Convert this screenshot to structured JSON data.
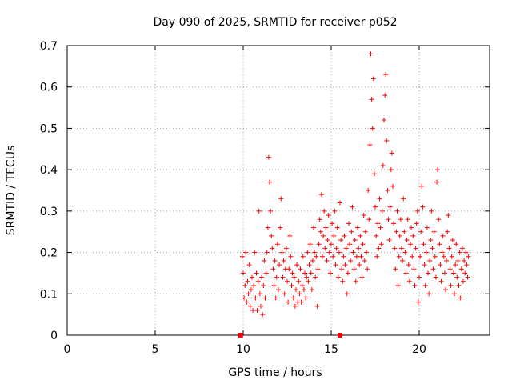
{
  "chart_data": {
    "type": "scatter",
    "title": "Day 090 of 2025, SRMTID for receiver p052",
    "xlabel": "GPS time / hours",
    "ylabel": "SRMTID / TECUs",
    "xlim": [
      0,
      24
    ],
    "ylim": [
      0,
      0.7
    ],
    "x_ticks": [
      "0",
      "5",
      "10",
      "15",
      "20"
    ],
    "y_ticks": [
      "0",
      "0.1",
      "0.2",
      "0.3",
      "0.4",
      "0.5",
      "0.6",
      "0.7"
    ],
    "grid": true,
    "color": "#ff0000",
    "marker": "plus",
    "series": [
      {
        "name": "SRMTID",
        "points": [
          [
            9.95,
            0.19
          ],
          [
            10.0,
            0.15
          ],
          [
            10.05,
            0.09
          ],
          [
            10.1,
            0.12
          ],
          [
            10.15,
            0.2
          ],
          [
            10.2,
            0.08
          ],
          [
            10.25,
            0.13
          ],
          [
            10.3,
            0.1
          ],
          [
            10.35,
            0.17
          ],
          [
            10.4,
            0.07
          ],
          [
            10.45,
            0.11
          ],
          [
            10.5,
            0.14
          ],
          [
            10.55,
            0.06
          ],
          [
            10.6,
            0.12
          ],
          [
            10.65,
            0.2
          ],
          [
            10.7,
            0.09
          ],
          [
            10.75,
            0.15
          ],
          [
            10.8,
            0.06
          ],
          [
            10.85,
            0.13
          ],
          [
            10.9,
            0.3
          ],
          [
            10.95,
            0.1
          ],
          [
            11.0,
            0.07
          ],
          [
            11.05,
            0.14
          ],
          [
            11.1,
            0.05
          ],
          [
            11.15,
            0.12
          ],
          [
            11.2,
            0.18
          ],
          [
            11.25,
            0.09
          ],
          [
            11.3,
            0.15
          ],
          [
            11.35,
            0.2
          ],
          [
            11.4,
            0.26
          ],
          [
            11.45,
            0.43
          ],
          [
            11.5,
            0.37
          ],
          [
            11.55,
            0.3
          ],
          [
            11.6,
            0.24
          ],
          [
            11.65,
            0.21
          ],
          [
            11.7,
            0.16
          ],
          [
            11.75,
            0.12
          ],
          [
            11.8,
            0.18
          ],
          [
            11.85,
            0.09
          ],
          [
            11.9,
            0.14
          ],
          [
            11.95,
            0.22
          ],
          [
            12.0,
            0.11
          ],
          [
            12.05,
            0.17
          ],
          [
            12.1,
            0.26
          ],
          [
            12.15,
            0.33
          ],
          [
            12.2,
            0.2
          ],
          [
            12.25,
            0.14
          ],
          [
            12.3,
            0.18
          ],
          [
            12.35,
            0.1
          ],
          [
            12.4,
            0.16
          ],
          [
            12.45,
            0.21
          ],
          [
            12.5,
            0.13
          ],
          [
            12.55,
            0.08
          ],
          [
            12.6,
            0.16
          ],
          [
            12.65,
            0.24
          ],
          [
            12.7,
            0.19
          ],
          [
            12.75,
            0.12
          ],
          [
            12.8,
            0.15
          ],
          [
            12.85,
            0.09
          ],
          [
            12.9,
            0.14
          ],
          [
            12.95,
            0.07
          ],
          [
            13.0,
            0.11
          ],
          [
            13.05,
            0.17
          ],
          [
            13.1,
            0.08
          ],
          [
            13.15,
            0.13
          ],
          [
            13.2,
            0.1
          ],
          [
            13.25,
            0.16
          ],
          [
            13.3,
            0.08
          ],
          [
            13.35,
            0.12
          ],
          [
            13.4,
            0.19
          ],
          [
            13.45,
            0.11
          ],
          [
            13.5,
            0.15
          ],
          [
            13.55,
            0.09
          ],
          [
            13.6,
            0.14
          ],
          [
            13.65,
            0.2
          ],
          [
            13.7,
            0.13
          ],
          [
            13.75,
            0.17
          ],
          [
            13.8,
            0.22
          ],
          [
            13.85,
            0.15
          ],
          [
            13.9,
            0.11
          ],
          [
            13.95,
            0.18
          ],
          [
            14.0,
            0.26
          ],
          [
            14.05,
            0.2
          ],
          [
            14.1,
            0.14
          ],
          [
            14.15,
            0.19
          ],
          [
            14.2,
            0.07
          ],
          [
            14.25,
            0.16
          ],
          [
            14.3,
            0.22
          ],
          [
            14.35,
            0.28
          ],
          [
            14.4,
            0.25
          ],
          [
            14.45,
            0.34
          ],
          [
            14.5,
            0.19
          ],
          [
            14.55,
            0.24
          ],
          [
            14.6,
            0.3
          ],
          [
            14.65,
            0.21
          ],
          [
            14.7,
            0.26
          ],
          [
            14.75,
            0.18
          ],
          [
            14.8,
            0.23
          ],
          [
            14.85,
            0.29
          ],
          [
            14.9,
            0.2
          ],
          [
            14.95,
            0.15
          ],
          [
            15.0,
            0.22
          ],
          [
            15.05,
            0.27
          ],
          [
            15.1,
            0.19
          ],
          [
            15.15,
            0.24
          ],
          [
            15.2,
            0.3
          ],
          [
            15.25,
            0.17
          ],
          [
            15.3,
            0.21
          ],
          [
            15.35,
            0.26
          ],
          [
            15.4,
            0.14
          ],
          [
            15.45,
            0.2
          ],
          [
            15.5,
            0.32
          ],
          [
            15.55,
            0.23
          ],
          [
            15.6,
            0.16
          ],
          [
            15.65,
            0.13
          ],
          [
            15.7,
            0.19
          ],
          [
            15.75,
            0.24
          ],
          [
            15.8,
            0.17
          ],
          [
            15.85,
            0.21
          ],
          [
            15.9,
            0.1
          ],
          [
            15.95,
            0.15
          ],
          [
            16.0,
            0.27
          ],
          [
            16.05,
            0.22
          ],
          [
            16.1,
            0.18
          ],
          [
            16.15,
            0.25
          ],
          [
            16.2,
            0.31
          ],
          [
            16.25,
            0.2
          ],
          [
            16.3,
            0.16
          ],
          [
            16.35,
            0.23
          ],
          [
            16.4,
            0.13
          ],
          [
            16.45,
            0.19
          ],
          [
            16.5,
            0.26
          ],
          [
            16.55,
            0.21
          ],
          [
            16.6,
            0.17
          ],
          [
            16.65,
            0.24
          ],
          [
            16.7,
            0.19
          ],
          [
            16.75,
            0.14
          ],
          [
            16.8,
            0.22
          ],
          [
            16.85,
            0.29
          ],
          [
            16.9,
            0.18
          ],
          [
            16.95,
            0.25
          ],
          [
            17.0,
            0.2
          ],
          [
            17.05,
            0.16
          ],
          [
            17.1,
            0.35
          ],
          [
            17.15,
            0.28
          ],
          [
            17.2,
            0.46
          ],
          [
            17.25,
            0.68
          ],
          [
            17.3,
            0.57
          ],
          [
            17.35,
            0.5
          ],
          [
            17.4,
            0.62
          ],
          [
            17.45,
            0.39
          ],
          [
            17.5,
            0.31
          ],
          [
            17.55,
            0.24
          ],
          [
            17.6,
            0.19
          ],
          [
            17.65,
            0.27
          ],
          [
            17.7,
            0.21
          ],
          [
            17.75,
            0.33
          ],
          [
            17.8,
            0.26
          ],
          [
            17.85,
            0.22
          ],
          [
            17.9,
            0.3
          ],
          [
            17.95,
            0.41
          ],
          [
            18.0,
            0.52
          ],
          [
            18.05,
            0.58
          ],
          [
            18.1,
            0.63
          ],
          [
            18.15,
            0.47
          ],
          [
            18.2,
            0.35
          ],
          [
            18.25,
            0.28
          ],
          [
            18.3,
            0.23
          ],
          [
            18.35,
            0.31
          ],
          [
            18.4,
            0.4
          ],
          [
            18.45,
            0.44
          ],
          [
            18.5,
            0.36
          ],
          [
            18.55,
            0.27
          ],
          [
            18.6,
            0.21
          ],
          [
            18.65,
            0.16
          ],
          [
            18.7,
            0.25
          ],
          [
            18.75,
            0.3
          ],
          [
            18.8,
            0.12
          ],
          [
            18.85,
            0.19
          ],
          [
            18.9,
            0.24
          ],
          [
            18.95,
            0.28
          ],
          [
            19.0,
            0.21
          ],
          [
            19.05,
            0.18
          ],
          [
            19.1,
            0.33
          ],
          [
            19.15,
            0.25
          ],
          [
            19.2,
            0.2
          ],
          [
            19.25,
            0.15
          ],
          [
            19.3,
            0.23
          ],
          [
            19.35,
            0.28
          ],
          [
            19.4,
            0.17
          ],
          [
            19.45,
            0.13
          ],
          [
            19.5,
            0.22
          ],
          [
            19.55,
            0.26
          ],
          [
            19.6,
            0.19
          ],
          [
            19.65,
            0.24
          ],
          [
            19.7,
            0.16
          ],
          [
            19.75,
            0.12
          ],
          [
            19.8,
            0.21
          ],
          [
            19.85,
            0.27
          ],
          [
            19.9,
            0.3
          ],
          [
            19.95,
            0.08
          ],
          [
            20.0,
            0.14
          ],
          [
            20.05,
            0.19
          ],
          [
            20.1,
            0.25
          ],
          [
            20.15,
            0.36
          ],
          [
            20.2,
            0.31
          ],
          [
            20.25,
            0.22
          ],
          [
            20.3,
            0.17
          ],
          [
            20.35,
            0.12
          ],
          [
            20.4,
            0.2
          ],
          [
            20.45,
            0.26
          ],
          [
            20.5,
            0.15
          ],
          [
            20.55,
            0.1
          ],
          [
            20.6,
            0.18
          ],
          [
            20.65,
            0.23
          ],
          [
            20.7,
            0.3
          ],
          [
            20.75,
            0.21
          ],
          [
            20.8,
            0.16
          ],
          [
            20.85,
            0.25
          ],
          [
            20.9,
            0.19
          ],
          [
            20.95,
            0.14
          ],
          [
            21.0,
            0.37
          ],
          [
            21.05,
            0.4
          ],
          [
            21.1,
            0.28
          ],
          [
            21.15,
            0.22
          ],
          [
            21.2,
            0.17
          ],
          [
            21.25,
            0.13
          ],
          [
            21.3,
            0.2
          ],
          [
            21.35,
            0.24
          ],
          [
            21.4,
            0.19
          ],
          [
            21.45,
            0.15
          ],
          [
            21.5,
            0.11
          ],
          [
            21.55,
            0.18
          ],
          [
            21.6,
            0.25
          ],
          [
            21.65,
            0.29
          ],
          [
            21.7,
            0.21
          ],
          [
            21.75,
            0.16
          ],
          [
            21.8,
            0.12
          ],
          [
            21.85,
            0.19
          ],
          [
            21.9,
            0.23
          ],
          [
            21.95,
            0.15
          ],
          [
            22.0,
            0.1
          ],
          [
            22.05,
            0.17
          ],
          [
            22.1,
            0.22
          ],
          [
            22.15,
            0.14
          ],
          [
            22.2,
            0.18
          ],
          [
            22.25,
            0.12
          ],
          [
            22.3,
            0.2
          ],
          [
            22.35,
            0.09
          ],
          [
            22.4,
            0.16
          ],
          [
            22.45,
            0.21
          ],
          [
            22.5,
            0.13
          ],
          [
            22.55,
            0.18
          ],
          [
            22.6,
            0.15
          ],
          [
            22.65,
            0.2
          ],
          [
            22.7,
            0.17
          ],
          [
            22.75,
            0.14
          ],
          [
            22.8,
            0.19
          ]
        ]
      }
    ],
    "axis_markers": [
      9.85,
      15.5
    ]
  }
}
